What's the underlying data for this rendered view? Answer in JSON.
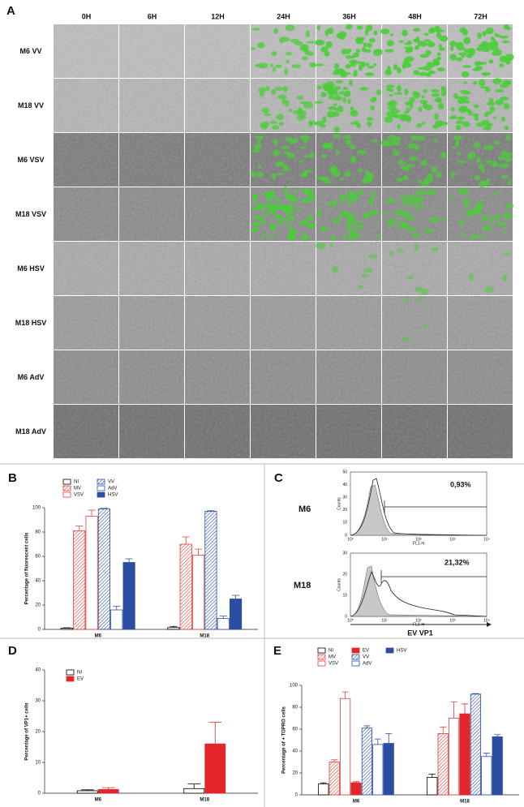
{
  "panel_a": {
    "label": "A",
    "columns": [
      "0H",
      "6H",
      "12H",
      "24H",
      "36H",
      "48H",
      "72H"
    ],
    "rows": [
      "M6 VV",
      "M18 VV",
      "M6 VSV",
      "M18 VSV",
      "M6 HSV",
      "M18 HSV",
      "M6 AdV",
      "M18 AdV"
    ]
  },
  "chart_data": [
    {
      "type": "bar",
      "panel_label": "B",
      "y_label": "Percentage of fluorescent cells",
      "categories": [
        "M6",
        "M18"
      ],
      "ylim": [
        0,
        100
      ],
      "yticks": [
        0,
        20,
        40,
        60,
        80,
        100
      ],
      "series": [
        {
          "name": "NI",
          "color": "#000000",
          "style": "outline",
          "values": [
            1,
            1.5
          ],
          "errors": [
            0.3,
            1
          ]
        },
        {
          "name": "MV",
          "color": "#e0403a",
          "style": "hatch",
          "values": [
            81,
            70
          ],
          "errors": [
            4,
            6
          ]
        },
        {
          "name": "VSV",
          "color": "#e0403a",
          "style": "outline",
          "values": [
            93,
            61
          ],
          "errors": [
            5,
            5
          ]
        },
        {
          "name": "VV",
          "color": "#2b4ea2",
          "style": "hatch",
          "values": [
            99,
            97
          ],
          "errors": [
            0.5,
            0.5
          ]
        },
        {
          "name": "AdV",
          "color": "#2b4ea2",
          "style": "outline",
          "values": [
            16,
            9
          ],
          "errors": [
            3,
            2
          ]
        },
        {
          "name": "HSV",
          "color": "#2b4ea2",
          "style": "solid",
          "values": [
            55,
            25
          ],
          "errors": [
            3,
            3
          ]
        }
      ]
    },
    {
      "type": "bar",
      "panel_label": "D",
      "y_label": "Percentage of VP1+ cells",
      "categories": [
        "M6",
        "M18"
      ],
      "ylim": [
        0,
        40
      ],
      "yticks": [
        0,
        10,
        20,
        30,
        40
      ],
      "series": [
        {
          "name": "NI",
          "color": "#000000",
          "style": "outline",
          "values": [
            0.8,
            1.5
          ],
          "errors": [
            0.3,
            1.5
          ]
        },
        {
          "name": "EV",
          "color": "#e3262b",
          "style": "solid",
          "values": [
            1.2,
            16
          ],
          "errors": [
            0.6,
            7
          ]
        }
      ]
    },
    {
      "type": "bar",
      "panel_label": "E",
      "y_label": "Percentage of + TOPRO cells",
      "categories": [
        "M6",
        "M18"
      ],
      "ylim": [
        0,
        100
      ],
      "yticks": [
        0,
        20,
        40,
        60,
        80,
        100
      ],
      "series": [
        {
          "name": "NI",
          "color": "#000000",
          "style": "outline",
          "values": [
            10,
            16
          ],
          "errors": [
            1,
            3
          ]
        },
        {
          "name": "MV",
          "color": "#e0403a",
          "style": "hatch",
          "values": [
            30,
            56
          ],
          "errors": [
            2,
            6
          ]
        },
        {
          "name": "VSV",
          "color": "#e0403a",
          "style": "outline",
          "values": [
            88,
            70
          ],
          "errors": [
            6,
            15
          ]
        },
        {
          "name": "EV",
          "color": "#e3262b",
          "style": "solid",
          "values": [
            11,
            74
          ],
          "errors": [
            1,
            9
          ]
        },
        {
          "name": "VV",
          "color": "#2b4ea2",
          "style": "hatch",
          "values": [
            61,
            92
          ],
          "errors": [
            2,
            0.5
          ]
        },
        {
          "name": "AdV",
          "color": "#2b4ea2",
          "style": "outline",
          "values": [
            46,
            35
          ],
          "errors": [
            5,
            3
          ]
        },
        {
          "name": "HSV",
          "color": "#2b4ea2",
          "style": "solid",
          "values": [
            47,
            53
          ],
          "errors": [
            9,
            2
          ]
        }
      ]
    }
  ],
  "panel_c": {
    "label": "C",
    "x_label": "EV VP1",
    "y_axis": "Counts",
    "x_axis": "FL1-H",
    "x_ticks": [
      "10⁰",
      "10¹",
      "10²",
      "10³",
      "10⁴"
    ],
    "plots": [
      {
        "name": "M6",
        "annotation": "0,93%",
        "y_ticks": [
          "0",
          "10",
          "20",
          "30",
          "40",
          "50"
        ]
      },
      {
        "name": "M18",
        "annotation": "21,32%",
        "y_ticks": [
          "0",
          "10",
          "20",
          "30"
        ]
      }
    ]
  }
}
